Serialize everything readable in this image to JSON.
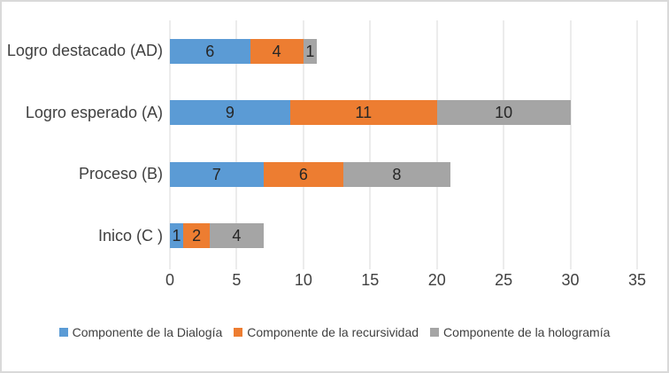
{
  "chart": {
    "border_color": "#D9D9D9",
    "background_color": "#FFFFFF"
  },
  "chart_data": {
    "type": "bar",
    "orientation": "horizontal",
    "stacked": true,
    "title": "",
    "xlabel": "",
    "ylabel": "",
    "categories": [
      "Logro destacado (AD)",
      "Logro esperado (A)",
      "Proceso (B)",
      "Inico (C )"
    ],
    "series": [
      {
        "name": "Componente de la Dialogía",
        "color": "#5B9BD5",
        "values": [
          6,
          9,
          7,
          1
        ]
      },
      {
        "name": "Componente de la recursividad",
        "color": "#ED7D31",
        "values": [
          4,
          11,
          6,
          2
        ]
      },
      {
        "name": "Componente de la hologramía",
        "color": "#A5A5A5",
        "values": [
          1,
          10,
          8,
          4
        ]
      }
    ],
    "totals": [
      11,
      30,
      21,
      7
    ],
    "x_ticks": [
      0,
      5,
      10,
      15,
      20,
      25,
      30,
      35
    ],
    "xlim": [
      0,
      35
    ],
    "grid": true,
    "gridline_color": "#D9D9D9",
    "axis_text_color": "#404040",
    "data_label_color": "#262626",
    "legend_position": "bottom"
  }
}
